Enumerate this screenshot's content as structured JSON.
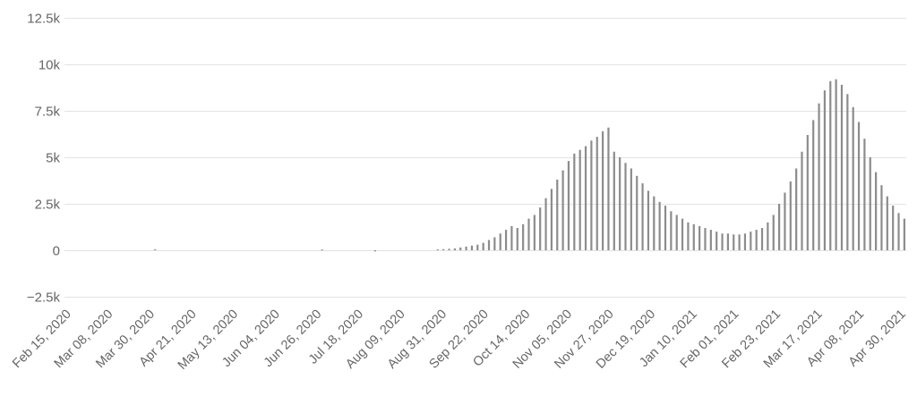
{
  "chart_data": {
    "type": "bar",
    "title": "",
    "xlabel": "",
    "ylabel": "",
    "ylim": [
      -2500,
      12500
    ],
    "y_ticks": [
      12500,
      10000,
      7500,
      5000,
      2500,
      0,
      -2500
    ],
    "y_tick_labels": [
      "12.5k",
      "10k",
      "7.5k",
      "5k",
      "2.5k",
      "0",
      "−2.5k"
    ],
    "grid": true,
    "x_range": [
      "2020-02-15",
      "2021-04-30"
    ],
    "x_tick_labels": [
      "Feb 15, 2020",
      "Mar 08, 2020",
      "Mar 30, 2020",
      "Apr 21, 2020",
      "May 13, 2020",
      "Jun 04, 2020",
      "Jun 26, 2020",
      "Jul 18, 2020",
      "Aug 09, 2020",
      "Aug 31, 2020",
      "Sep 22, 2020",
      "Oct 14, 2020",
      "Nov 05, 2020",
      "Nov 27, 2020",
      "Dec 19, 2020",
      "Jan 10, 2021",
      "Feb 01, 2021",
      "Feb 23, 2021",
      "Mar 17, 2021",
      "Apr 08, 2021",
      "Apr 30, 2021"
    ],
    "series_color": "#8c8c8c",
    "x": [
      "2020-03-30",
      "2020-06-26",
      "2020-07-24",
      "2020-08-26",
      "2020-08-29",
      "2020-09-01",
      "2020-09-04",
      "2020-09-07",
      "2020-09-10",
      "2020-09-13",
      "2020-09-16",
      "2020-09-19",
      "2020-09-22",
      "2020-09-25",
      "2020-09-28",
      "2020-10-01",
      "2020-10-04",
      "2020-10-07",
      "2020-10-10",
      "2020-10-13",
      "2020-10-16",
      "2020-10-19",
      "2020-10-22",
      "2020-10-25",
      "2020-10-28",
      "2020-10-31",
      "2020-11-03",
      "2020-11-06",
      "2020-11-09",
      "2020-11-12",
      "2020-11-15",
      "2020-11-18",
      "2020-11-21",
      "2020-11-24",
      "2020-11-27",
      "2020-11-30",
      "2020-12-03",
      "2020-12-06",
      "2020-12-09",
      "2020-12-12",
      "2020-12-15",
      "2020-12-18",
      "2020-12-21",
      "2020-12-24",
      "2020-12-27",
      "2020-12-30",
      "2021-01-02",
      "2021-01-05",
      "2021-01-08",
      "2021-01-11",
      "2021-01-14",
      "2021-01-17",
      "2021-01-20",
      "2021-01-23",
      "2021-01-26",
      "2021-01-29",
      "2021-02-01",
      "2021-02-04",
      "2021-02-07",
      "2021-02-10",
      "2021-02-13",
      "2021-02-16",
      "2021-02-19",
      "2021-02-22",
      "2021-02-25",
      "2021-02-28",
      "2021-03-03",
      "2021-03-06",
      "2021-03-09",
      "2021-03-12",
      "2021-03-15",
      "2021-03-18",
      "2021-03-21",
      "2021-03-24",
      "2021-03-27",
      "2021-03-30",
      "2021-04-02",
      "2021-04-05",
      "2021-04-08",
      "2021-04-11",
      "2021-04-14",
      "2021-04-17",
      "2021-04-20",
      "2021-04-23",
      "2021-04-26",
      "2021-04-29"
    ],
    "values": [
      50,
      40,
      -60,
      50,
      60,
      80,
      100,
      150,
      200,
      250,
      300,
      400,
      550,
      700,
      900,
      1100,
      1300,
      1200,
      1400,
      1700,
      1900,
      2300,
      2800,
      3300,
      3800,
      4300,
      4800,
      5200,
      5400,
      5600,
      5900,
      6100,
      6400,
      6600,
      5300,
      5000,
      4700,
      4400,
      4000,
      3600,
      3200,
      2900,
      2600,
      2400,
      2100,
      1900,
      1700,
      1500,
      1400,
      1300,
      1200,
      1100,
      1000,
      900,
      900,
      850,
      850,
      900,
      1000,
      1100,
      1200,
      1500,
      1900,
      2500,
      3100,
      3700,
      4400,
      5300,
      6200,
      7000,
      7900,
      8600,
      9100,
      9200,
      8900,
      8400,
      7700,
      6900,
      6000,
      5000,
      4200,
      3500,
      2900,
      2400,
      2000,
      1700
    ]
  }
}
